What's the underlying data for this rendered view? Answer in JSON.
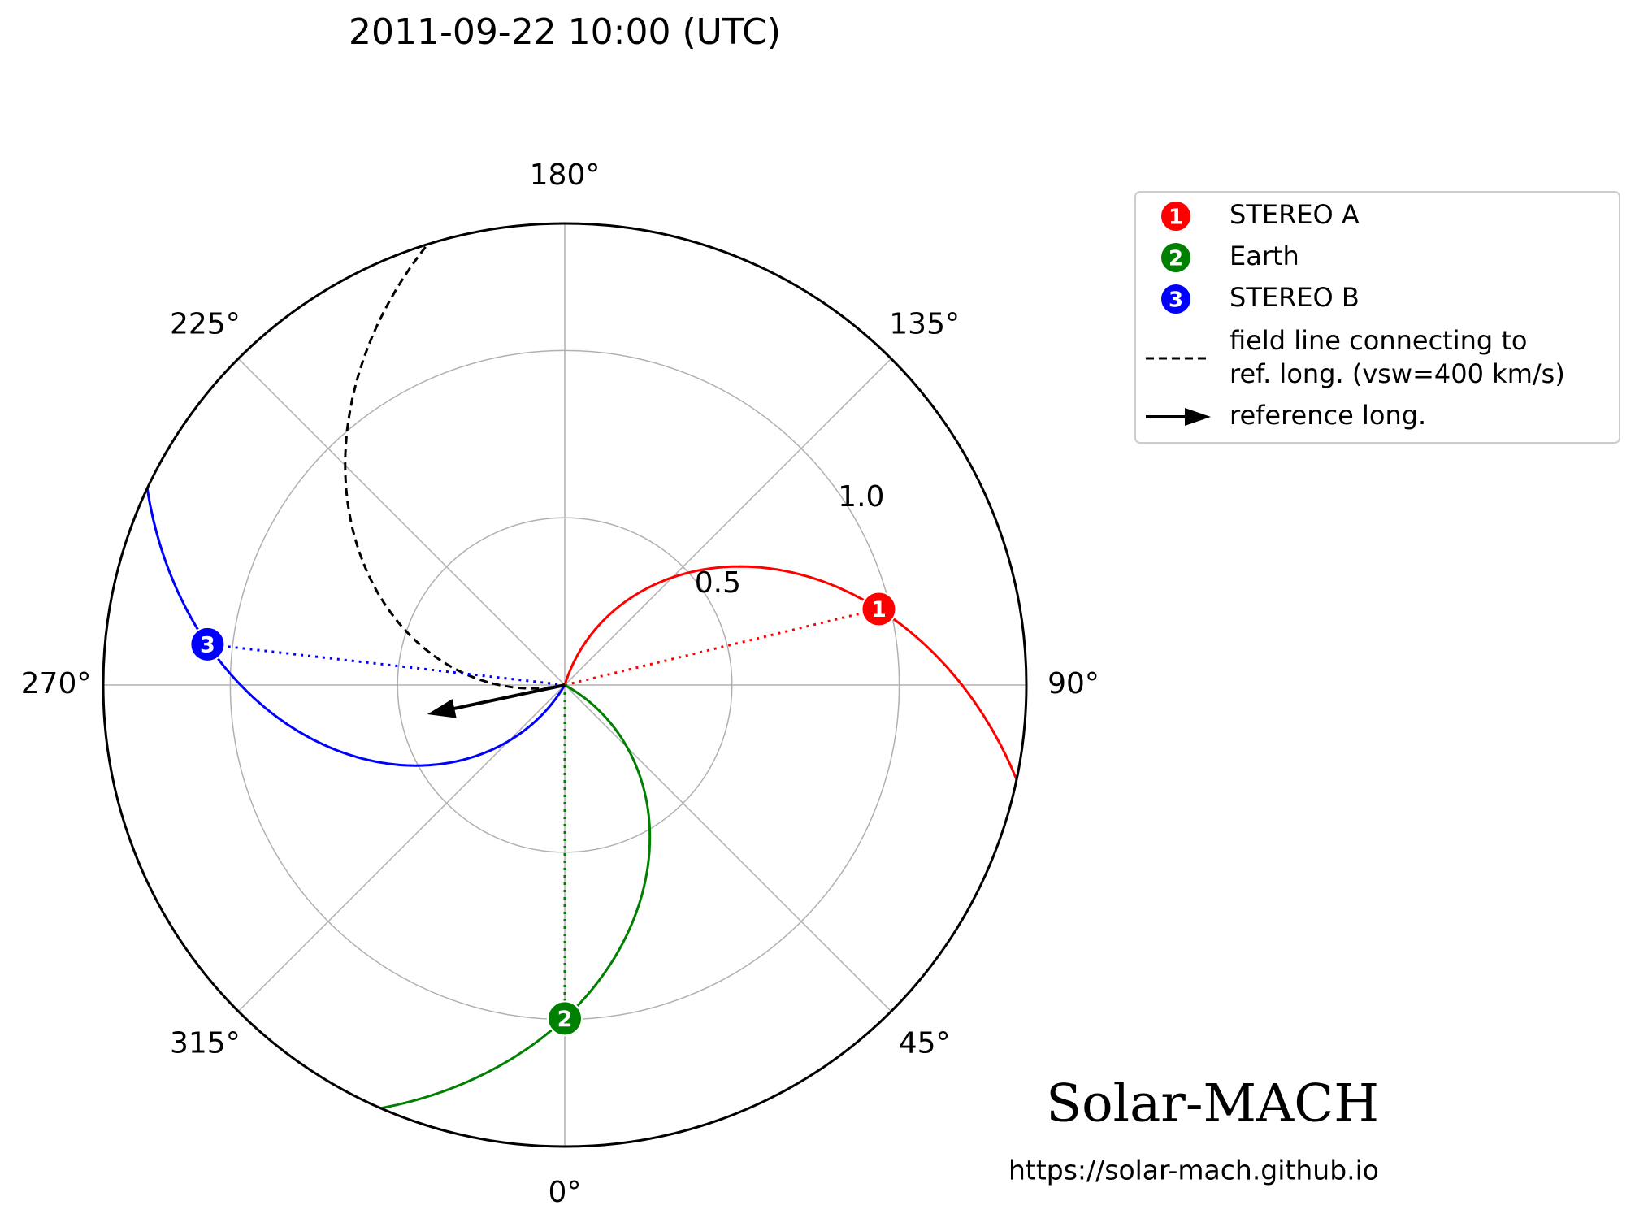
{
  "chart_data": {
    "type": "polar",
    "title": "2011-09-22 10:00 (UTC)",
    "rlim": [
      0,
      1.38
    ],
    "rticks": [
      0.5,
      {
        "value": 1.0,
        "label": "1.0"
      }
    ],
    "thetaticks": [
      {
        "value": 0,
        "label": "0°"
      },
      {
        "value": 45,
        "label": "45°"
      },
      {
        "value": 90,
        "label": "90°"
      },
      {
        "value": 135,
        "label": "135°"
      },
      {
        "value": 180,
        "label": "180°"
      },
      {
        "value": 225,
        "label": "225°"
      },
      {
        "value": 270,
        "label": "270°"
      },
      {
        "value": 315,
        "label": "315°"
      }
    ],
    "grid": true,
    "legend": "right",
    "solar_wind_speed": 400,
    "series": [
      {
        "name": "STEREO A",
        "marker": "1",
        "color": "#ff0000",
        "r": 0.966,
        "lon": 103.6
      },
      {
        "name": "Earth",
        "marker": "2",
        "color": "#008000",
        "r": 0.997,
        "lon": 0
      },
      {
        "name": "STEREO B",
        "marker": "3",
        "color": "#0000ff",
        "r": 1.075,
        "lon": -96.5
      }
    ],
    "field_line": {
      "name": [
        "field line connecting to",
        "ref. long. (vsw=400 km/s)"
      ],
      "color": "#000000"
    },
    "reference": {
      "name": "reference long.",
      "lon": 282,
      "color": "#000000"
    }
  },
  "footer": {
    "logo": "Solar-MACH",
    "url": "https://solar-mach.github.io"
  }
}
